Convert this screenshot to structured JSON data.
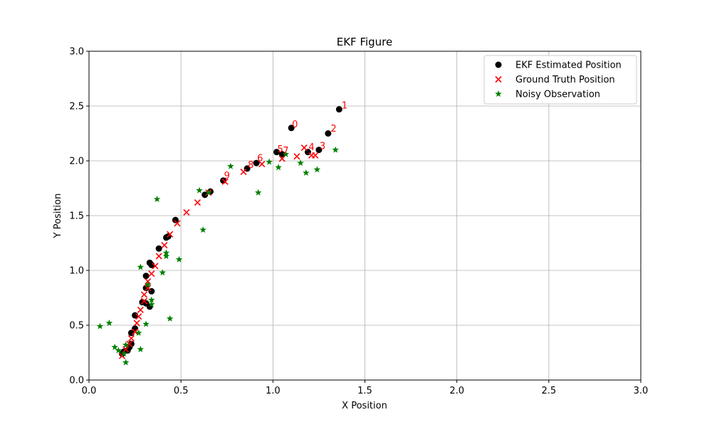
{
  "chart_data": {
    "type": "scatter",
    "title": "EKF Figure",
    "xlabel": "X Position",
    "ylabel": "Y Position",
    "xlim": [
      0.0,
      3.0
    ],
    "ylim": [
      0.0,
      3.0
    ],
    "xticks": [
      "0.0",
      "0.5",
      "1.0",
      "1.5",
      "2.0",
      "2.5",
      "3.0"
    ],
    "yticks": [
      "0.0",
      "0.5",
      "1.0",
      "1.5",
      "2.0",
      "2.5",
      "3.0"
    ],
    "grid": true,
    "legend_position": "top-right",
    "series": [
      {
        "name": "EKF Estimated  Position",
        "marker": "circle",
        "color": "#000000",
        "points": [
          [
            0.18,
            0.24
          ],
          [
            0.19,
            0.26
          ],
          [
            0.21,
            0.27
          ],
          [
            0.22,
            0.3
          ],
          [
            0.23,
            0.33
          ],
          [
            0.23,
            0.43
          ],
          [
            0.25,
            0.47
          ],
          [
            0.25,
            0.59
          ],
          [
            0.29,
            0.71
          ],
          [
            0.31,
            0.7
          ],
          [
            0.33,
            0.67
          ],
          [
            0.34,
            0.81
          ],
          [
            0.31,
            0.84
          ],
          [
            0.31,
            0.95
          ],
          [
            0.33,
            1.07
          ],
          [
            0.34,
            1.05
          ],
          [
            0.38,
            1.2
          ],
          [
            0.42,
            1.3
          ],
          [
            0.43,
            1.31
          ],
          [
            0.47,
            1.46
          ],
          [
            0.63,
            1.69
          ],
          [
            0.66,
            1.72
          ],
          [
            0.73,
            1.82
          ],
          [
            0.86,
            1.93
          ],
          [
            0.91,
            1.98
          ],
          [
            1.02,
            2.08
          ],
          [
            1.05,
            2.06
          ],
          [
            1.1,
            2.3
          ],
          [
            1.19,
            2.08
          ],
          [
            1.25,
            2.1
          ],
          [
            1.3,
            2.25
          ],
          [
            1.36,
            2.47
          ]
        ]
      },
      {
        "name": "Ground Truth Position",
        "marker": "x",
        "color": "#ff0000",
        "points": [
          [
            0.18,
            0.22
          ],
          [
            0.2,
            0.28
          ],
          [
            0.22,
            0.33
          ],
          [
            0.23,
            0.38
          ],
          [
            0.25,
            0.44
          ],
          [
            0.26,
            0.52
          ],
          [
            0.27,
            0.58
          ],
          [
            0.28,
            0.64
          ],
          [
            0.3,
            0.72
          ],
          [
            0.3,
            0.78
          ],
          [
            0.32,
            0.84
          ],
          [
            0.32,
            0.9
          ],
          [
            0.34,
            0.97
          ],
          [
            0.36,
            1.04
          ],
          [
            0.38,
            1.13
          ],
          [
            0.41,
            1.23
          ],
          [
            0.44,
            1.33
          ],
          [
            0.48,
            1.43
          ],
          [
            0.53,
            1.53
          ],
          [
            0.59,
            1.62
          ],
          [
            0.65,
            1.71
          ],
          [
            0.74,
            1.81
          ],
          [
            0.84,
            1.9
          ],
          [
            0.94,
            1.97
          ],
          [
            1.05,
            2.02
          ],
          [
            1.13,
            2.04
          ],
          [
            1.17,
            2.12
          ],
          [
            1.21,
            2.05
          ],
          [
            1.23,
            2.05
          ]
        ]
      },
      {
        "name": "Noisy Observation",
        "marker": "star",
        "color": "#008000",
        "points": [
          [
            0.06,
            0.49
          ],
          [
            0.11,
            0.52
          ],
          [
            0.14,
            0.3
          ],
          [
            0.16,
            0.27
          ],
          [
            0.19,
            0.24
          ],
          [
            0.2,
            0.32
          ],
          [
            0.2,
            0.16
          ],
          [
            0.28,
            0.28
          ],
          [
            0.27,
            0.43
          ],
          [
            0.28,
            1.03
          ],
          [
            0.31,
            0.51
          ],
          [
            0.32,
            0.87
          ],
          [
            0.34,
            0.73
          ],
          [
            0.34,
            0.69
          ],
          [
            0.37,
            1.65
          ],
          [
            0.4,
            0.98
          ],
          [
            0.42,
            1.13
          ],
          [
            0.42,
            1.16
          ],
          [
            0.44,
            0.56
          ],
          [
            0.49,
            1.1
          ],
          [
            0.6,
            1.73
          ],
          [
            0.62,
            1.37
          ],
          [
            0.65,
            1.71
          ],
          [
            0.77,
            1.95
          ],
          [
            0.92,
            1.71
          ],
          [
            0.98,
            1.99
          ],
          [
            1.03,
            1.94
          ],
          [
            1.07,
            2.06
          ],
          [
            1.15,
            1.98
          ],
          [
            1.18,
            1.89
          ],
          [
            1.24,
            1.92
          ],
          [
            1.34,
            2.1
          ]
        ]
      }
    ],
    "annotations": [
      {
        "text": "0",
        "x": 1.1,
        "y": 2.3
      },
      {
        "text": "1",
        "x": 1.37,
        "y": 2.47
      },
      {
        "text": "2",
        "x": 1.31,
        "y": 2.26
      },
      {
        "text": "3",
        "x": 1.25,
        "y": 2.1
      },
      {
        "text": "4",
        "x": 1.19,
        "y": 2.09
      },
      {
        "text": "5",
        "x": 1.02,
        "y": 2.07
      },
      {
        "text": "6",
        "x": 0.91,
        "y": 1.99
      },
      {
        "text": "7",
        "x": 1.05,
        "y": 2.06
      },
      {
        "text": "8",
        "x": 0.86,
        "y": 1.93
      },
      {
        "text": "9",
        "x": 0.73,
        "y": 1.83
      }
    ]
  }
}
